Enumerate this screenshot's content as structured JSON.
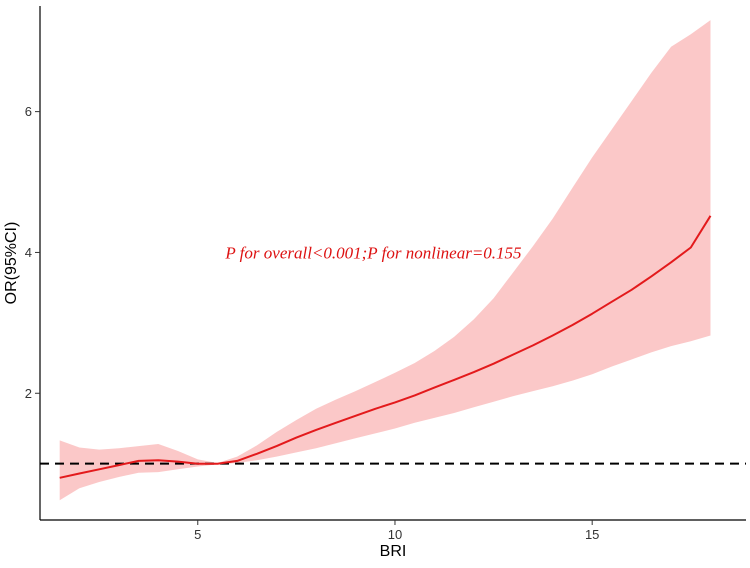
{
  "chart_data": {
    "type": "line",
    "xlabel": "BRI",
    "ylabel": "OR(95%CI)",
    "xlim": [
      1.0,
      18.9
    ],
    "ylim": [
      0.2,
      7.5
    ],
    "xticks": [
      5,
      10,
      15
    ],
    "yticks": [
      2,
      4,
      6
    ],
    "xtick_labels": [
      "5",
      "10",
      "15"
    ],
    "ytick_labels": [
      "2",
      "4",
      "6"
    ],
    "reference_line": {
      "y": 1.0,
      "style": "dashed",
      "color": "#000000"
    },
    "annotation": {
      "text": "P for overall<0.001;P for nonlinear=0.155",
      "x": 5.7,
      "y": 4.0,
      "color": "#dd1111"
    },
    "grid": false,
    "legend": "none",
    "colors": {
      "line": "#e31a1c",
      "band": "#f9b3b3",
      "axis": "#000000"
    },
    "series": [
      {
        "x": [
          1.5,
          2.0,
          2.5,
          3.0,
          3.5,
          4.0,
          4.5,
          5.0,
          5.5,
          6.0,
          6.5,
          7.0,
          7.5,
          8.0,
          8.5,
          9.0,
          9.5,
          10.0,
          10.5,
          11.0,
          11.5,
          12.0,
          12.5,
          13.0,
          13.5,
          14.0,
          14.5,
          15.0,
          15.5,
          16.0,
          16.5,
          17.0,
          17.5,
          18.0
        ],
        "y": [
          0.8,
          0.86,
          0.92,
          0.98,
          1.04,
          1.05,
          1.03,
          1.0,
          1.0,
          1.04,
          1.14,
          1.25,
          1.37,
          1.48,
          1.58,
          1.68,
          1.78,
          1.87,
          1.97,
          2.08,
          2.19,
          2.3,
          2.42,
          2.55,
          2.68,
          2.82,
          2.97,
          3.13,
          3.3,
          3.47,
          3.66,
          3.86,
          4.07,
          4.52
        ],
        "lower": [
          0.48,
          0.65,
          0.74,
          0.81,
          0.87,
          0.88,
          0.92,
          0.96,
          0.99,
          1.01,
          1.05,
          1.1,
          1.16,
          1.22,
          1.29,
          1.36,
          1.43,
          1.5,
          1.58,
          1.65,
          1.72,
          1.8,
          1.88,
          1.96,
          2.03,
          2.1,
          2.18,
          2.27,
          2.38,
          2.48,
          2.58,
          2.67,
          2.74,
          2.82
        ],
        "upper": [
          1.33,
          1.23,
          1.2,
          1.22,
          1.25,
          1.28,
          1.18,
          1.06,
          1.01,
          1.1,
          1.26,
          1.45,
          1.62,
          1.78,
          1.91,
          2.03,
          2.16,
          2.29,
          2.43,
          2.6,
          2.8,
          3.05,
          3.35,
          3.72,
          4.09,
          4.48,
          4.92,
          5.35,
          5.75,
          6.15,
          6.55,
          6.92,
          7.1,
          7.3
        ]
      }
    ]
  }
}
